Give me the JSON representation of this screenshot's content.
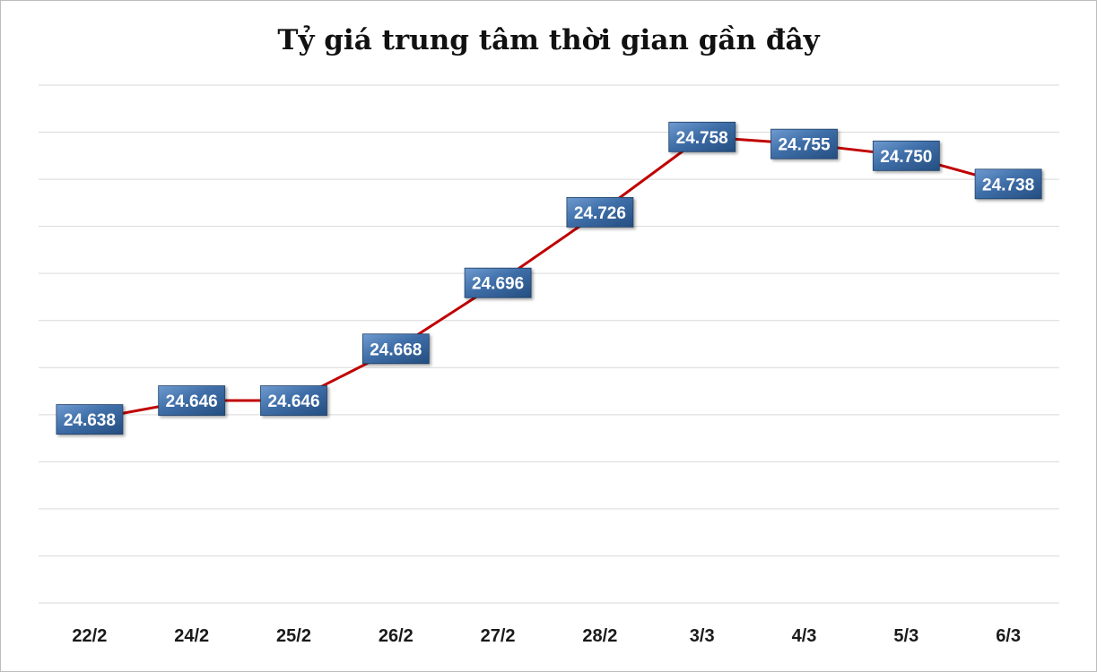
{
  "chart_data": {
    "type": "line",
    "title": "Tỷ giá trung tâm thời gian gần đây",
    "categories": [
      "22/2",
      "24/2",
      "25/2",
      "26/2",
      "27/2",
      "28/2",
      "3/3",
      "4/3",
      "5/3",
      "6/3"
    ],
    "values": [
      24638,
      24646,
      24646,
      24668,
      24696,
      24726,
      24758,
      24755,
      24750,
      24738
    ],
    "data_labels": [
      "24.638",
      "24.646",
      "24.646",
      "24.668",
      "24.696",
      "24.726",
      "24.758",
      "24.755",
      "24.750",
      "24.738"
    ],
    "ylim": [
      24560,
      24780
    ],
    "y_grid_step": 20,
    "grid": true,
    "xlabel": "",
    "ylabel": "",
    "colors": {
      "line": "#c00000",
      "label_bg_top": "#4f81bd",
      "label_bg_bottom": "#2c5a8f",
      "grid": "#d9d9d9"
    }
  }
}
